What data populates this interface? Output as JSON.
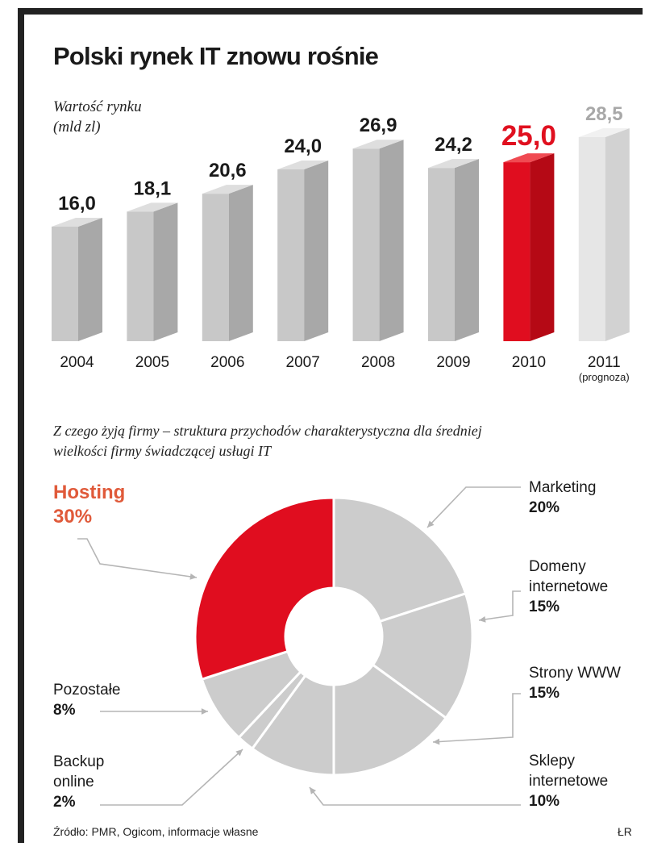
{
  "chart_data": [
    {
      "type": "bar",
      "title": "Polski rynek IT znowu rośnie",
      "ylabel": "Wartość rynku (mld zl)",
      "ylabel_lines": [
        "Wartość rynku",
        "(mld zl)"
      ],
      "categories": [
        "2004",
        "2005",
        "2006",
        "2007",
        "2008",
        "2009",
        "2010",
        "2011"
      ],
      "category_notes": [
        "",
        "",
        "",
        "",
        "",
        "",
        "",
        "(prognoza)"
      ],
      "values": [
        16.0,
        18.1,
        20.6,
        24.0,
        26.9,
        24.2,
        25.0,
        28.5
      ],
      "value_labels": [
        "16,0",
        "18,1",
        "20,6",
        "24,0",
        "26,9",
        "24,2",
        "25,0",
        "28,5"
      ],
      "highlight_index": 6,
      "forecast_index": 7,
      "ylim": [
        0,
        28.5
      ],
      "grid": false
    },
    {
      "type": "pie",
      "style": "donut",
      "title": "Z czego żyją firmy – struktura przychodów charakterystyczna dla średniej wielkości firmy świadczącej usługi IT",
      "title_lines": [
        "Z czego żyją firmy – struktura przychodów  charakterystyczna dla średniej",
        "wielkości firmy świadczącej usługi IT"
      ],
      "slices": [
        {
          "name": "Marketing",
          "name_lines": [
            "Marketing"
          ],
          "value": 20,
          "label": "20%"
        },
        {
          "name": "Domeny internetowe",
          "name_lines": [
            "Domeny",
            "internetowe"
          ],
          "value": 15,
          "label": "15%"
        },
        {
          "name": "Strony WWW",
          "name_lines": [
            "Strony WWW"
          ],
          "value": 15,
          "label": "15%"
        },
        {
          "name": "Sklepy internetowe",
          "name_lines": [
            "Sklepy",
            "internetowe"
          ],
          "value": 10,
          "label": "10%"
        },
        {
          "name": "Backup online",
          "name_lines": [
            "Backup",
            "online"
          ],
          "value": 2,
          "label": "2%"
        },
        {
          "name": "Pozostałe",
          "name_lines": [
            "Pozostałe"
          ],
          "value": 8,
          "label": "8%"
        },
        {
          "name": "Hosting",
          "name_lines": [
            "Hosting"
          ],
          "value": 30,
          "label": "30%"
        }
      ],
      "highlight": "Hosting"
    }
  ],
  "source": "Źródło: PMR, Ogicom, informacje własne",
  "author": "ŁR",
  "colors": {
    "bar_front": "#c8c8c8",
    "bar_side": "#a8a8a8",
    "bar_top": "#dedede",
    "highlight_front": "#e00d1f",
    "highlight_side": "#b50915",
    "highlight_top": "#f04a52",
    "forecast_front": "#e6e6e6",
    "forecast_side": "#d2d2d2",
    "forecast_top": "#f1f1f1",
    "highlight_label": "#e0101f",
    "forecast_label": "#a8a8a8",
    "pie_grey": "#cccccc",
    "pie_red": "#e00d1f",
    "hosting_label": "#e05a3a",
    "leader_line": "#b5b5b5"
  }
}
